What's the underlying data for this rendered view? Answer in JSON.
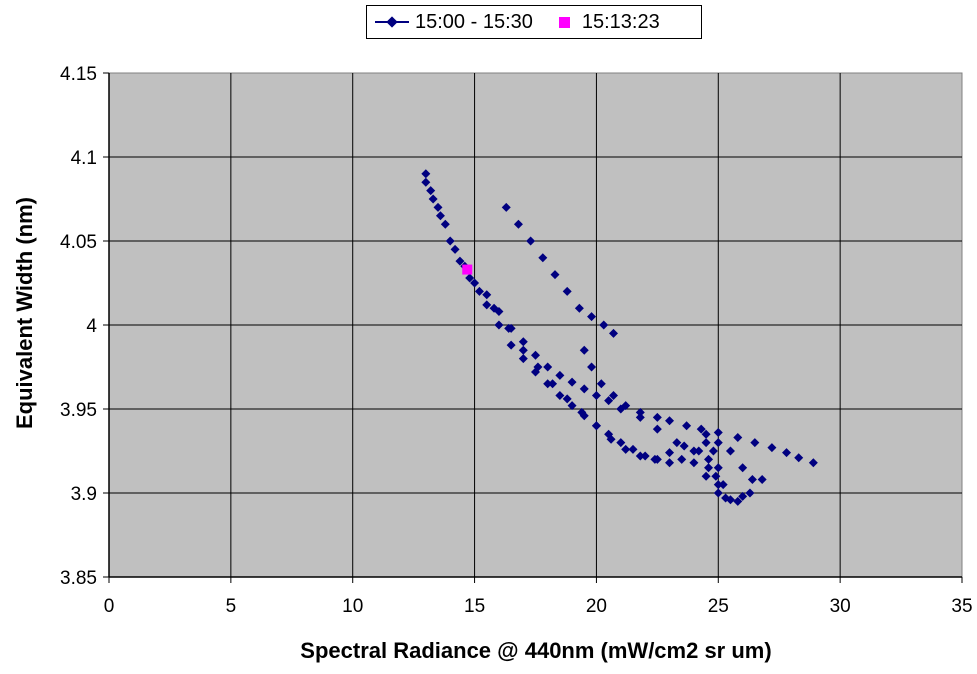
{
  "chart_data": {
    "type": "scatter",
    "title": "",
    "xlabel": "Spectral Radiance @ 440nm (mW/cm2 sr um)",
    "ylabel": "Equivalent Width (nm)",
    "xlim": [
      0,
      35
    ],
    "ylim": [
      3.85,
      4.15
    ],
    "x_ticks": [
      "0",
      "5",
      "10",
      "15",
      "20",
      "25",
      "30",
      "35"
    ],
    "y_ticks": [
      "3.85",
      "3.9",
      "3.95",
      "4",
      "4.05",
      "4.1",
      "4.15"
    ],
    "grid": true,
    "legend_position": "top-center",
    "plot_background": "#c0c0c0",
    "series": [
      {
        "name": "15:00 - 15:30",
        "color": "#000080",
        "marker": "diamond",
        "x": [
          13.0,
          13.2,
          13.5,
          13.8,
          14.2,
          14.6,
          15.0,
          15.5,
          16.0,
          16.5,
          17.0,
          17.5,
          18.0,
          18.5,
          19.0,
          19.5,
          20.0,
          20.5,
          21.0,
          21.5,
          22.0,
          22.5,
          23.0,
          23.5,
          24.0,
          24.5,
          25.0,
          25.5,
          26.0,
          26.4,
          26.0,
          25.5,
          25.0,
          24.5,
          24.0,
          23.3,
          22.5,
          21.8,
          21.0,
          20.5,
          20.0,
          19.5,
          19.0,
          18.5,
          18.0,
          17.5,
          17.0,
          16.5,
          16.0,
          15.5,
          13.0,
          13.3,
          13.6,
          14.0,
          14.4,
          14.8,
          15.2,
          15.8,
          16.4,
          17.0,
          17.6,
          18.2,
          18.8,
          19.4,
          20.0,
          20.6,
          21.2,
          21.8,
          22.4,
          23.0,
          23.6,
          24.2,
          24.6,
          25.0,
          25.3,
          25.8,
          26.3,
          26.8,
          16.3,
          16.8,
          17.3,
          17.8,
          18.3,
          18.8,
          19.3,
          19.8,
          20.3,
          20.7,
          19.5,
          19.8,
          20.2,
          20.7,
          21.2,
          21.8,
          22.5,
          23.0,
          23.7,
          24.3,
          25.0,
          25.8,
          26.5,
          27.2,
          27.8,
          28.3,
          28.9,
          24.5,
          24.8,
          25.0,
          25.2,
          24.9,
          24.6
        ],
        "y": [
          4.09,
          4.08,
          4.07,
          4.06,
          4.045,
          4.035,
          4.025,
          4.012,
          4.0,
          3.988,
          3.98,
          3.972,
          3.965,
          3.958,
          3.952,
          3.946,
          3.94,
          3.935,
          3.93,
          3.926,
          3.922,
          3.92,
          3.918,
          3.92,
          3.925,
          3.93,
          3.93,
          3.925,
          3.915,
          3.908,
          3.898,
          3.896,
          3.9,
          3.91,
          3.918,
          3.93,
          3.938,
          3.945,
          3.95,
          3.955,
          3.958,
          3.962,
          3.966,
          3.97,
          3.975,
          3.982,
          3.99,
          3.998,
          4.008,
          4.018,
          4.085,
          4.075,
          4.065,
          4.05,
          4.038,
          4.028,
          4.02,
          4.01,
          3.998,
          3.985,
          3.975,
          3.965,
          3.956,
          3.948,
          3.94,
          3.932,
          3.926,
          3.922,
          3.92,
          3.924,
          3.928,
          3.925,
          3.915,
          3.905,
          3.897,
          3.895,
          3.9,
          3.908,
          4.07,
          4.06,
          4.05,
          4.04,
          4.03,
          4.02,
          4.01,
          4.005,
          4.0,
          3.995,
          3.985,
          3.975,
          3.965,
          3.958,
          3.952,
          3.948,
          3.945,
          3.943,
          3.94,
          3.938,
          3.936,
          3.933,
          3.93,
          3.927,
          3.924,
          3.921,
          3.918,
          3.935,
          3.925,
          3.915,
          3.905,
          3.91,
          3.92
        ]
      },
      {
        "name": "15:13:23",
        "color": "#ff00ff",
        "marker": "square",
        "x": [
          14.7
        ],
        "y": [
          4.033
        ]
      }
    ]
  }
}
